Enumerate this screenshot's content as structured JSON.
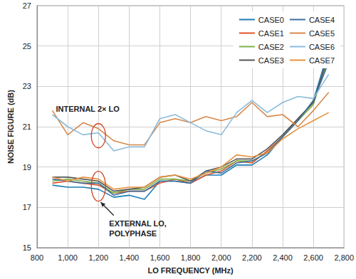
{
  "chart_data": {
    "type": "line",
    "xlabel": "LO FREQUENCY (MHz)",
    "ylabel": "NOISE FIGURE (dB)",
    "x": [
      900,
      1000,
      1100,
      1200,
      1300,
      1400,
      1500,
      1600,
      1700,
      1800,
      1900,
      2000,
      2100,
      2200,
      2300,
      2400,
      2500,
      2600,
      2700
    ],
    "xlim": [
      800,
      2800
    ],
    "xticks": [
      800,
      1000,
      1200,
      1400,
      1600,
      1800,
      2000,
      2200,
      2400,
      2600,
      2800
    ],
    "ylim": [
      15,
      27
    ],
    "yticks": [
      15,
      17,
      19,
      21,
      23,
      25,
      27
    ],
    "grid": true,
    "legend": "upper right",
    "series": [
      {
        "name": "CASE0",
        "color": "#1b7db3",
        "values": [
          18.1,
          18.0,
          18.0,
          17.9,
          17.5,
          17.6,
          17.4,
          18.3,
          18.3,
          18.2,
          18.6,
          18.6,
          19.1,
          19.1,
          19.6,
          20.5,
          21.3,
          22.3,
          24.8
        ]
      },
      {
        "name": "CASE1",
        "color": "#e0522a",
        "values": [
          18.2,
          18.3,
          18.2,
          18.1,
          17.7,
          17.8,
          17.8,
          18.2,
          18.4,
          18.2,
          18.6,
          18.8,
          19.3,
          19.2,
          19.8,
          20.5,
          21.4,
          22.2,
          24.3
        ]
      },
      {
        "name": "CASE2",
        "color": "#7fb347",
        "values": [
          18.3,
          18.4,
          18.3,
          18.2,
          17.7,
          17.9,
          17.9,
          18.4,
          18.4,
          18.3,
          18.7,
          18.9,
          19.3,
          19.3,
          19.7,
          20.5,
          21.3,
          22.1,
          24.5
        ]
      },
      {
        "name": "CASE3",
        "color": "#555555",
        "values": [
          18.5,
          18.5,
          18.4,
          18.3,
          17.8,
          17.9,
          18.0,
          18.5,
          18.6,
          18.3,
          18.8,
          19.0,
          19.4,
          19.4,
          19.9,
          20.6,
          21.4,
          22.2,
          24.6
        ]
      },
      {
        "name": "CASE4",
        "color": "#3d6e9e",
        "values": [
          18.4,
          18.3,
          18.2,
          18.2,
          17.6,
          17.8,
          17.8,
          18.3,
          18.3,
          18.2,
          18.8,
          18.7,
          19.2,
          19.3,
          19.7,
          20.5,
          21.3,
          22.3,
          24.2
        ]
      },
      {
        "name": "CASE5",
        "color": "#d8884a",
        "values": [
          21.8,
          20.6,
          21.2,
          20.9,
          20.3,
          20.1,
          20.1,
          21.2,
          21.4,
          21.2,
          21.5,
          21.3,
          21.5,
          22.2,
          21.5,
          21.6,
          21.0,
          21.8,
          22.7
        ]
      },
      {
        "name": "CASE6",
        "color": "#8bbbdb",
        "values": [
          21.6,
          21.0,
          20.6,
          20.7,
          19.8,
          20.0,
          20.0,
          21.4,
          21.6,
          21.2,
          20.8,
          20.6,
          21.7,
          22.3,
          21.7,
          22.2,
          22.5,
          22.4,
          23.6
        ]
      },
      {
        "name": "CASE7",
        "color": "#e8913c",
        "values": [
          18.5,
          18.3,
          18.5,
          18.4,
          17.9,
          18.0,
          18.0,
          18.5,
          18.6,
          18.4,
          18.7,
          19.0,
          19.6,
          19.5,
          19.7,
          20.4,
          20.9,
          21.3,
          21.7
        ]
      }
    ],
    "annotations": [
      {
        "text": "INTERNAL 2× LO"
      },
      {
        "text": [
          "EXTERNAL LO,",
          "POLYPHASE"
        ]
      }
    ]
  }
}
